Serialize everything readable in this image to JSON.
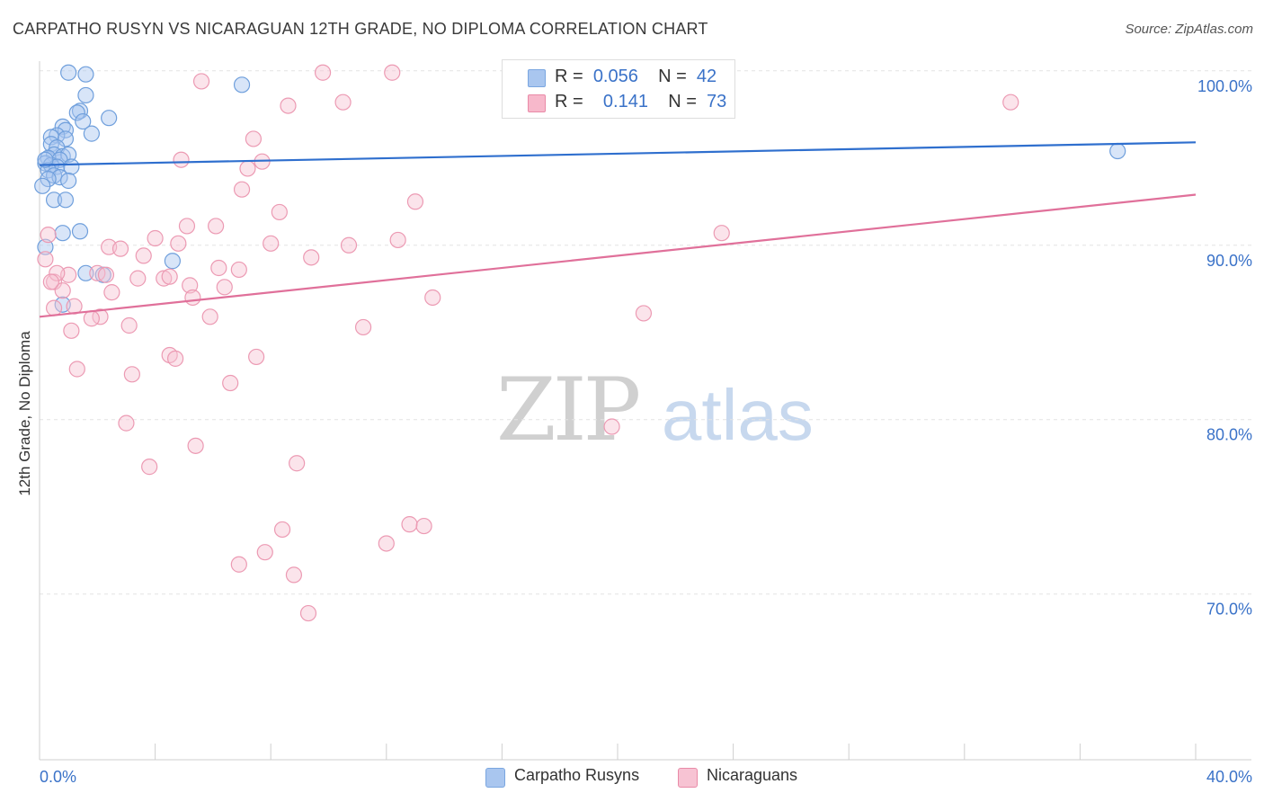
{
  "title": "CARPATHO RUSYN VS NICARAGUAN 12TH GRADE, NO DIPLOMA CORRELATION CHART",
  "source": "Source: ZipAtlas.com",
  "watermark": {
    "zip": "ZIP",
    "atlas": "atlas"
  },
  "legend_top": {
    "rows": [
      {
        "r_label": "R =",
        "r_value": "0.056",
        "n_label": "N =",
        "n_value": "42",
        "color": "#a9c6ef",
        "border": "#7aa6e0"
      },
      {
        "r_label": "R =",
        "r_value": "0.141",
        "n_label": "N =",
        "n_value": "73",
        "color": "#f7b8cb",
        "border": "#e98aa7"
      }
    ]
  },
  "chart_data": {
    "type": "scatter",
    "title": "CARPATHO RUSYN VS NICARAGUAN 12TH GRADE, NO DIPLOMA CORRELATION CHART",
    "xlabel": "",
    "ylabel": "12th Grade, No Diploma",
    "xlim": [
      0,
      40
    ],
    "ylim": [
      60.5,
      102
    ],
    "x_tick_labels": [
      "0.0%",
      "40.0%"
    ],
    "y_ticks": [
      70,
      80,
      90,
      100
    ],
    "y_tick_labels": [
      "70.0%",
      "80.0%",
      "90.0%",
      "100.0%"
    ],
    "grid": true,
    "legend_position": "bottom-center",
    "series": [
      {
        "name": "Carpatho Rusyns",
        "color": "#6f9fdc",
        "fill": "#a9c6ef",
        "trend_color": "#2f6fce",
        "trend": {
          "x": [
            0,
            40
          ],
          "y": [
            94.6,
            95.9
          ]
        },
        "points": [
          [
            1.0,
            99.9
          ],
          [
            1.6,
            99.8
          ],
          [
            7.0,
            99.2
          ],
          [
            1.6,
            98.6
          ],
          [
            1.4,
            97.7
          ],
          [
            1.3,
            97.6
          ],
          [
            2.4,
            97.3
          ],
          [
            1.5,
            97.1
          ],
          [
            0.8,
            96.8
          ],
          [
            0.9,
            96.6
          ],
          [
            0.6,
            96.3
          ],
          [
            0.4,
            96.2
          ],
          [
            1.8,
            96.4
          ],
          [
            0.9,
            96.1
          ],
          [
            0.4,
            95.8
          ],
          [
            0.6,
            95.6
          ],
          [
            0.5,
            95.2
          ],
          [
            0.8,
            95.1
          ],
          [
            1.0,
            95.2
          ],
          [
            0.3,
            95.0
          ],
          [
            0.7,
            94.9
          ],
          [
            0.2,
            94.7
          ],
          [
            0.4,
            94.6
          ],
          [
            0.6,
            94.5
          ],
          [
            1.1,
            94.5
          ],
          [
            0.3,
            94.3
          ],
          [
            0.5,
            94.0
          ],
          [
            0.7,
            93.9
          ],
          [
            0.3,
            93.8
          ],
          [
            1.0,
            93.7
          ],
          [
            0.1,
            93.4
          ],
          [
            0.5,
            92.6
          ],
          [
            0.9,
            92.6
          ],
          [
            1.4,
            90.8
          ],
          [
            0.8,
            90.7
          ],
          [
            0.2,
            89.9
          ],
          [
            1.6,
            88.4
          ],
          [
            2.2,
            88.3
          ],
          [
            4.6,
            89.1
          ],
          [
            0.8,
            86.6
          ],
          [
            37.3,
            95.4
          ],
          [
            0.2,
            94.9
          ]
        ]
      },
      {
        "name": "Nicaraguans",
        "color": "#ec9ab3",
        "fill": "#f7c3d3",
        "trend_color": "#e0709a",
        "trend": {
          "x": [
            0,
            40
          ],
          "y": [
            85.9,
            92.9
          ]
        },
        "points": [
          [
            9.8,
            99.9
          ],
          [
            12.2,
            99.9
          ],
          [
            5.6,
            99.4
          ],
          [
            10.5,
            98.2
          ],
          [
            8.6,
            98.0
          ],
          [
            33.6,
            98.2
          ],
          [
            7.4,
            96.1
          ],
          [
            4.9,
            94.9
          ],
          [
            7.7,
            94.8
          ],
          [
            7.2,
            94.4
          ],
          [
            7.0,
            93.2
          ],
          [
            13.0,
            92.5
          ],
          [
            8.3,
            91.9
          ],
          [
            5.1,
            91.1
          ],
          [
            6.1,
            91.1
          ],
          [
            4.0,
            90.4
          ],
          [
            12.4,
            90.3
          ],
          [
            23.6,
            90.7
          ],
          [
            8.0,
            90.1
          ],
          [
            10.7,
            90.0
          ],
          [
            4.8,
            90.1
          ],
          [
            2.4,
            89.9
          ],
          [
            2.8,
            89.8
          ],
          [
            3.6,
            89.4
          ],
          [
            9.4,
            89.3
          ],
          [
            6.2,
            88.7
          ],
          [
            6.9,
            88.6
          ],
          [
            1.0,
            88.3
          ],
          [
            2.0,
            88.4
          ],
          [
            3.4,
            88.1
          ],
          [
            4.3,
            88.1
          ],
          [
            4.5,
            88.2
          ],
          [
            2.3,
            88.3
          ],
          [
            0.5,
            87.9
          ],
          [
            5.2,
            87.7
          ],
          [
            6.4,
            87.6
          ],
          [
            2.5,
            87.3
          ],
          [
            0.8,
            87.4
          ],
          [
            5.3,
            87.0
          ],
          [
            13.6,
            87.0
          ],
          [
            0.5,
            86.4
          ],
          [
            1.2,
            86.5
          ],
          [
            2.1,
            85.9
          ],
          [
            1.8,
            85.8
          ],
          [
            5.9,
            85.9
          ],
          [
            20.9,
            86.1
          ],
          [
            3.1,
            85.4
          ],
          [
            11.2,
            85.3
          ],
          [
            1.1,
            85.1
          ],
          [
            4.5,
            83.7
          ],
          [
            7.5,
            83.6
          ],
          [
            4.7,
            83.5
          ],
          [
            1.3,
            82.9
          ],
          [
            3.2,
            82.6
          ],
          [
            6.6,
            82.1
          ],
          [
            3.0,
            79.8
          ],
          [
            19.8,
            79.6
          ],
          [
            5.4,
            78.5
          ],
          [
            3.8,
            77.3
          ],
          [
            8.9,
            77.5
          ],
          [
            12.8,
            74.0
          ],
          [
            13.3,
            73.9
          ],
          [
            8.4,
            73.7
          ],
          [
            12.0,
            72.9
          ],
          [
            7.8,
            72.4
          ],
          [
            6.9,
            71.7
          ],
          [
            8.8,
            71.1
          ],
          [
            9.3,
            68.9
          ],
          [
            21.9,
            99.9
          ],
          [
            0.3,
            90.6
          ],
          [
            0.2,
            89.2
          ],
          [
            0.6,
            88.4
          ],
          [
            0.4,
            87.9
          ]
        ]
      }
    ]
  }
}
